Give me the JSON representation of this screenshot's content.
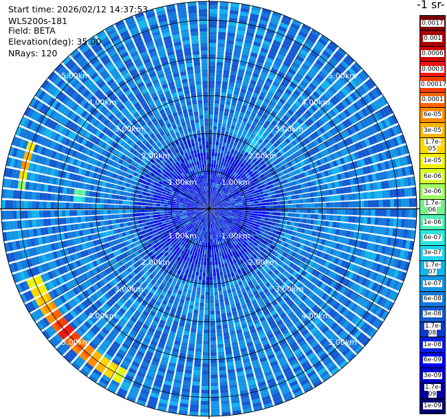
{
  "header": {
    "start_time": "Start time: 2026/02/12 14:37:53",
    "instrument": "WLS200s-181",
    "field": "Field: BETA",
    "elevation": "Elevation(deg): 35.00",
    "nrays": "NRays: 120"
  },
  "colorbar": {
    "title": "-1 sr-",
    "labels": [
      "0.0017",
      "0.001",
      "0.0006",
      "0.0003",
      "0.00017",
      "0.0001",
      "6e-05",
      "3e-05",
      "1.7e-05",
      "1e-05",
      "6e-06",
      "3e-06",
      "1.7e-06",
      "1e-06",
      "6e-07",
      "3e-07",
      "1.7e-07",
      "1e-07",
      "6e-08",
      "3e-08",
      "1.7e-08",
      "1e-08",
      "6e-09",
      "3e-09",
      "1.7e-09",
      "1e-09"
    ],
    "colors": [
      "#7a0000",
      "#a80000",
      "#d10000",
      "#f01414",
      "#ff3c00",
      "#ff6400",
      "#ff8c00",
      "#ffb400",
      "#ffd700",
      "#f5f000",
      "#d7ff28",
      "#a0ff60",
      "#78f08c",
      "#50f0b4",
      "#2ce6dc",
      "#1ed2f0",
      "#14b4f0",
      "#1496e6",
      "#1478dc",
      "#145ad2",
      "#0a3cc8",
      "#0a1edc",
      "#0000f0",
      "#0000c8",
      "#00009b",
      "#00006e"
    ]
  },
  "chart_data": {
    "type": "heatmap",
    "projection": "polar-ppi",
    "nrays": 120,
    "elevation_deg": 35.0,
    "range_max_km": 5.5,
    "range_rings_km": [
      1.0,
      2.0,
      3.0,
      4.0,
      5.0
    ],
    "ring_label_text": [
      "1.00km",
      "2.00km",
      "3.00km",
      "4.00km",
      "5.00km"
    ],
    "ring_label_bearings_deg": [
      45,
      135,
      225,
      315
    ],
    "background_level": "6e-08",
    "near_field_level": "6e-09",
    "features": [
      {
        "description": "arc of strong backscatter",
        "azimuth_deg": [
          207,
          247
        ],
        "range_km": [
          4.8,
          5.2
        ],
        "peak_level": "0.0003"
      },
      {
        "description": "west band",
        "azimuth_deg": [
          276,
          290
        ],
        "range_km": [
          4.9,
          5.1
        ],
        "peak_level": "0.0001"
      },
      {
        "description": "north-east patch",
        "azimuth_deg": [
          20,
          45
        ],
        "range_km": [
          1.8,
          2.6
        ],
        "peak_level": "3e-07"
      },
      {
        "description": "west spot",
        "azimuth_deg": [
          272,
          278
        ],
        "range_km": [
          3.3,
          3.6
        ],
        "peak_level": "6e-06"
      }
    ],
    "grid": true
  }
}
